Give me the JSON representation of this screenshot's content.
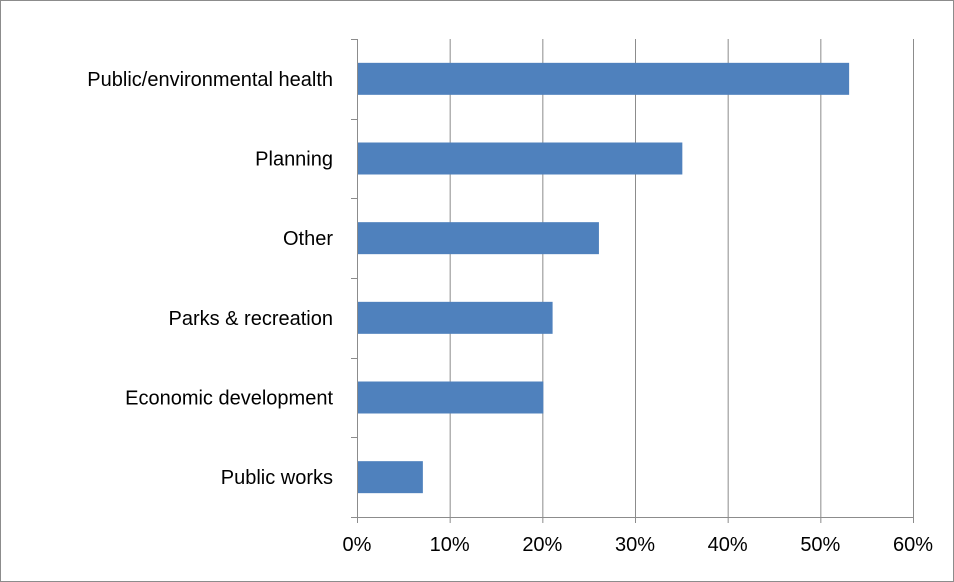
{
  "chart_data": {
    "type": "bar",
    "orientation": "horizontal",
    "title": "",
    "xlabel": "",
    "ylabel": "",
    "categories": [
      "Public/environmental health",
      "Planning",
      "Other",
      "Parks & recreation",
      "Economic development",
      "Public works"
    ],
    "values": [
      53,
      35,
      26,
      21,
      20,
      7
    ],
    "value_unit": "%",
    "xlim": [
      0,
      60
    ],
    "x_ticks": [
      0,
      10,
      20,
      30,
      40,
      50,
      60
    ],
    "x_tick_labels": [
      "0%",
      "10%",
      "20%",
      "30%",
      "40%",
      "50%",
      "60%"
    ],
    "grid": "vertical",
    "legend": "none",
    "colors": {
      "bar": "#4f81bd",
      "grid": "#8c8c8c",
      "axis": "#8c8c8c",
      "border": "#8c8c8c"
    }
  }
}
